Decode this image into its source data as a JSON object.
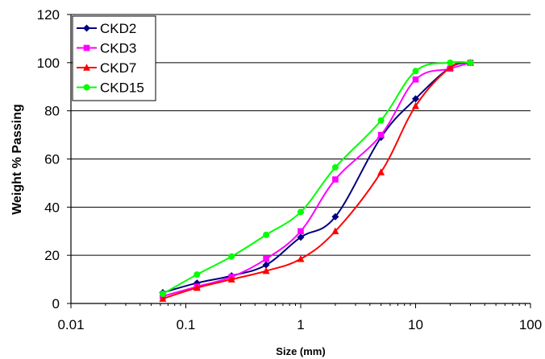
{
  "chart_data": {
    "type": "line",
    "title": "",
    "xlabel": "Size (mm)",
    "ylabel": "Weight % Passing",
    "xscale": "log",
    "xlim": [
      0.01,
      100
    ],
    "ylim": [
      0,
      120
    ],
    "xticks": [
      0.01,
      0.1,
      1,
      10,
      100
    ],
    "xtick_labels": [
      "0.01",
      "0.1",
      "1",
      "10",
      "100"
    ],
    "yticks": [
      0,
      20,
      40,
      60,
      80,
      100,
      120
    ],
    "ytick_labels": [
      "0",
      "20",
      "40",
      "60",
      "80",
      "100",
      "120"
    ],
    "grid": "horizontal major gridlines",
    "legend_position": "top-left",
    "series": [
      {
        "name": "CKD2",
        "color": "#000080",
        "marker": "diamond",
        "x": [
          0.063,
          0.125,
          0.25,
          0.5,
          1,
          2,
          5,
          10,
          20,
          30
        ],
        "y": [
          4.5,
          8.5,
          11.5,
          16,
          27.5,
          36,
          69,
          85,
          98,
          100
        ]
      },
      {
        "name": "CKD3",
        "color": "#ff00ff",
        "marker": "square",
        "x": [
          0.063,
          0.125,
          0.25,
          0.5,
          1,
          2,
          5,
          10,
          20,
          30
        ],
        "y": [
          3,
          7,
          11,
          18.5,
          30,
          51.5,
          70,
          93,
          97.5,
          100
        ]
      },
      {
        "name": "CKD7",
        "color": "#ff0000",
        "marker": "triangle",
        "x": [
          0.063,
          0.125,
          0.25,
          0.5,
          1,
          2,
          5,
          10,
          20,
          30
        ],
        "y": [
          2,
          6.5,
          10,
          13.5,
          18.5,
          30,
          54.5,
          82,
          98,
          100
        ]
      },
      {
        "name": "CKD15",
        "color": "#00ff00",
        "marker": "circle",
        "x": [
          0.063,
          0.125,
          0.25,
          0.5,
          1,
          2,
          5,
          10,
          20,
          30
        ],
        "y": [
          4,
          12,
          19.5,
          28.5,
          38,
          56.5,
          76,
          96.5,
          100,
          100
        ]
      }
    ]
  }
}
